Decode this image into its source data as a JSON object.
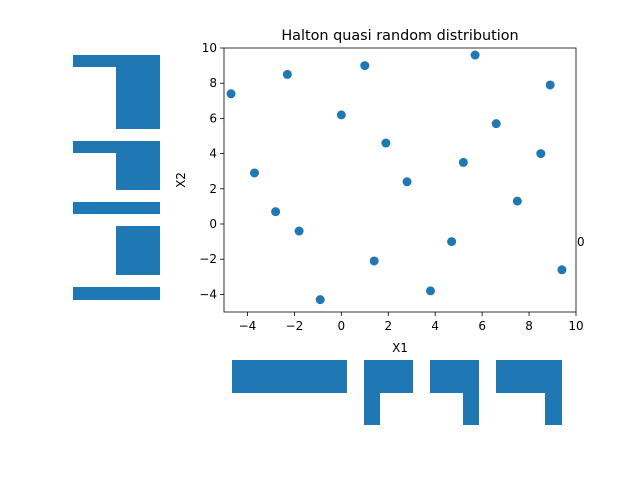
{
  "colors": {
    "points": "#1f77b4",
    "bars": "#1f77b4",
    "axis": "#000000"
  },
  "stray_label": "0",
  "chart_data": [
    {
      "type": "scatter",
      "title": "Halton quasi random distribution",
      "xlabel": "X1",
      "ylabel": "X2",
      "xlim": [
        -5,
        10
      ],
      "ylim": [
        -5,
        10
      ],
      "xticks": [
        "−4",
        "−2",
        "0",
        "2",
        "4",
        "6",
        "8",
        "10"
      ],
      "yticks": [
        "−4",
        "−2",
        "0",
        "2",
        "4",
        "6",
        "8",
        "10"
      ],
      "grid": false,
      "points": [
        {
          "x": -4.7,
          "y": 7.4
        },
        {
          "x": -3.7,
          "y": 2.9
        },
        {
          "x": -2.8,
          "y": 0.7
        },
        {
          "x": -2.3,
          "y": 8.5
        },
        {
          "x": -1.8,
          "y": -0.4
        },
        {
          "x": -0.9,
          "y": -4.3
        },
        {
          "x": 0.0,
          "y": 6.2
        },
        {
          "x": 1.0,
          "y": 9.0
        },
        {
          "x": 1.4,
          "y": -2.1
        },
        {
          "x": 1.9,
          "y": 4.6
        },
        {
          "x": 2.8,
          "y": 2.4
        },
        {
          "x": 3.8,
          "y": -3.8
        },
        {
          "x": 4.7,
          "y": -1.0
        },
        {
          "x": 5.2,
          "y": 3.5
        },
        {
          "x": 5.7,
          "y": 9.6
        },
        {
          "x": 6.6,
          "y": 5.7
        },
        {
          "x": 7.5,
          "y": 1.3
        },
        {
          "x": 8.5,
          "y": 4.0
        },
        {
          "x": 8.9,
          "y": 7.9
        },
        {
          "x": 9.4,
          "y": -2.6
        }
      ]
    }
  ]
}
